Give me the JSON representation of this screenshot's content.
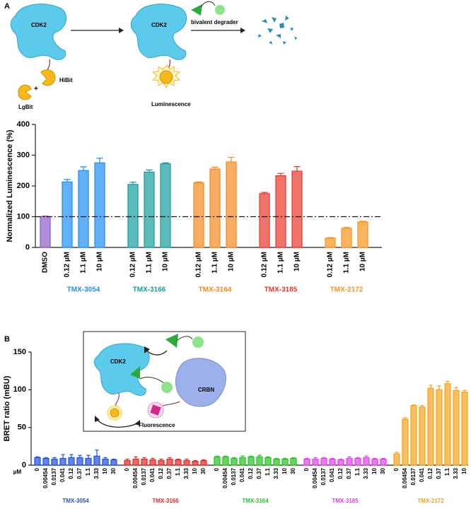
{
  "diagram_a": {
    "panel": "A",
    "protein_1": "CDK2",
    "tag_small": "HiBit",
    "tag_large": "LgBit",
    "plus": "+",
    "protein_2": "CDK2",
    "degrader": "bivalent degrader",
    "signal": "Luminescence"
  },
  "diagram_b": {
    "panel": "B",
    "protein": "CDK2",
    "ligase": "CRBN",
    "signal": "Fluorescence"
  },
  "chart_data": [
    {
      "type": "bar",
      "ylabel": "Normalized Luminescence (%)",
      "ylim": [
        0,
        400
      ],
      "yticks": [
        0,
        100,
        200,
        300,
        400
      ],
      "ref_line": 100,
      "series": [
        {
          "color": "#8e5cc7",
          "categories": [
            "DMSO"
          ],
          "values": [
            100
          ],
          "errors": [
            2
          ]
        },
        {
          "name": "TMX-3054",
          "color": "#1f8ef1",
          "categories": [
            "0.12 µM",
            "1.1 µM",
            "10 µM"
          ],
          "values": [
            213,
            250,
            275
          ],
          "errors": [
            8,
            12,
            15
          ]
        },
        {
          "name": "TMX-3166",
          "color": "#169c9c",
          "categories": [
            "0.12 µM",
            "1.1 µM",
            "10 µM"
          ],
          "values": [
            205,
            245,
            272
          ],
          "errors": [
            7,
            7,
            3
          ]
        },
        {
          "name": "TMX-3164",
          "color": "#f5891f",
          "categories": [
            "0.12 µM",
            "1.1 µM",
            "10 µM"
          ],
          "values": [
            210,
            255,
            278
          ],
          "errors": [
            3,
            6,
            15
          ]
        },
        {
          "name": "TMX-3185",
          "color": "#e8372b",
          "categories": [
            "0.12 µM",
            "1.1 µM",
            "10 µM"
          ],
          "values": [
            175,
            233,
            248
          ],
          "errors": [
            4,
            8,
            15
          ]
        },
        {
          "name": "TMX-2172",
          "color": "#f7941d",
          "categories": [
            "0.12 µM",
            "1.1 µM",
            "10 µM"
          ],
          "values": [
            30,
            62,
            83
          ],
          "errors": [
            2,
            3,
            2
          ]
        }
      ]
    },
    {
      "type": "bar",
      "ylabel": "BRET ratio (mBU)",
      "x_unit": "µM",
      "ylim": [
        0,
        150
      ],
      "yticks": [
        0,
        50,
        100,
        150
      ],
      "series": [
        {
          "name": "TMX-3054",
          "color": "#1f4fe0",
          "categories": [
            "0",
            "0.00454",
            "0.0137",
            "0.041",
            "0.12",
            "0.37",
            "1.1",
            "3.33",
            "10",
            "30"
          ],
          "values": [
            10,
            9,
            8,
            9,
            10,
            10,
            9,
            12,
            8,
            7
          ],
          "errors": [
            1,
            1,
            2,
            5,
            4,
            3,
            4,
            8,
            2,
            1
          ]
        },
        {
          "name": "TMX-3166",
          "color": "#e8251f",
          "categories": [
            "0",
            "0.00454",
            "0.0137",
            "0.041",
            "0.12",
            "0.37",
            "1.1",
            "3.33",
            "10",
            "30"
          ],
          "values": [
            6,
            8,
            8,
            7,
            6,
            8,
            7,
            6,
            5,
            6
          ],
          "errors": [
            2,
            3,
            2,
            2,
            2,
            2,
            1,
            2,
            1,
            1
          ]
        },
        {
          "name": "TMX-3164",
          "color": "#22c41f",
          "categories": [
            "0",
            "0.00454",
            "0.0137",
            "0.041",
            "0.12",
            "0.37",
            "1.1",
            "3.33",
            "10",
            "30"
          ],
          "values": [
            11,
            11,
            9,
            10,
            11,
            11,
            10,
            8,
            8,
            9
          ],
          "errors": [
            1,
            1,
            1,
            2,
            1,
            2,
            1,
            1,
            1,
            1
          ]
        },
        {
          "name": "TMX-3185",
          "color": "#e040e8",
          "categories": [
            "0",
            "0.00454",
            "0.0137",
            "0.041",
            "0.12",
            "0.37",
            "1.1",
            "3.33",
            "10",
            "30"
          ],
          "values": [
            8,
            8,
            9,
            8,
            7,
            9,
            9,
            10,
            8,
            8
          ],
          "errors": [
            1,
            2,
            1,
            1,
            1,
            2,
            1,
            2,
            1,
            1
          ]
        },
        {
          "name": "TMX-2172",
          "color": "#f7a21b",
          "categories": [
            "0",
            "0.00454",
            "0.0137",
            "0.041",
            "0.12",
            "0.37",
            "1.1",
            "3.33",
            "10"
          ],
          "values": [
            15,
            61,
            79,
            77,
            102,
            100,
            108,
            99,
            97
          ],
          "errors": [
            2,
            2,
            1,
            2,
            4,
            5,
            3,
            4,
            2
          ]
        }
      ]
    }
  ]
}
